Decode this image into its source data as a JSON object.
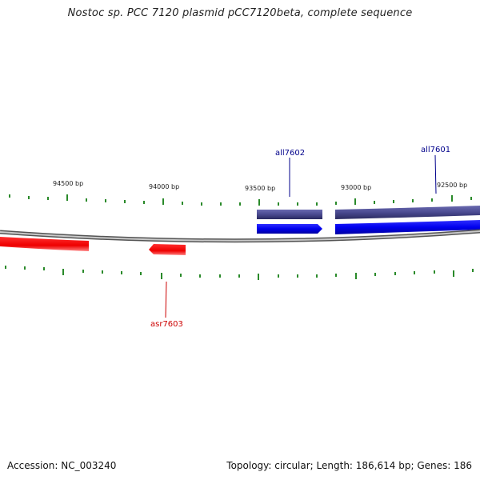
{
  "title": "Nostoc sp. PCC 7120 plasmid pCC7120beta, complete sequence",
  "accession": "Accession: NC_003240",
  "summary": "Topology: circular; Length: 186,614 bp; Genes: 186",
  "colors": {
    "backbone": "#8a8a8a",
    "tick": "#2a8a2a",
    "forward_gene": "#0a0af0",
    "forward_cds_bar": "#4a4a90",
    "reverse_gene": "#f00000",
    "forward_label": "#00008b",
    "reverse_label": "#cc0000"
  },
  "scale_labels": [
    "94500 bp",
    "94000 bp",
    "93500 bp",
    "93000 bp",
    "92500 bp"
  ],
  "genes": [
    {
      "name": "all7602",
      "strand": "forward"
    },
    {
      "name": "all7601",
      "strand": "forward"
    },
    {
      "name": "asr7603",
      "strand": "reverse"
    }
  ]
}
